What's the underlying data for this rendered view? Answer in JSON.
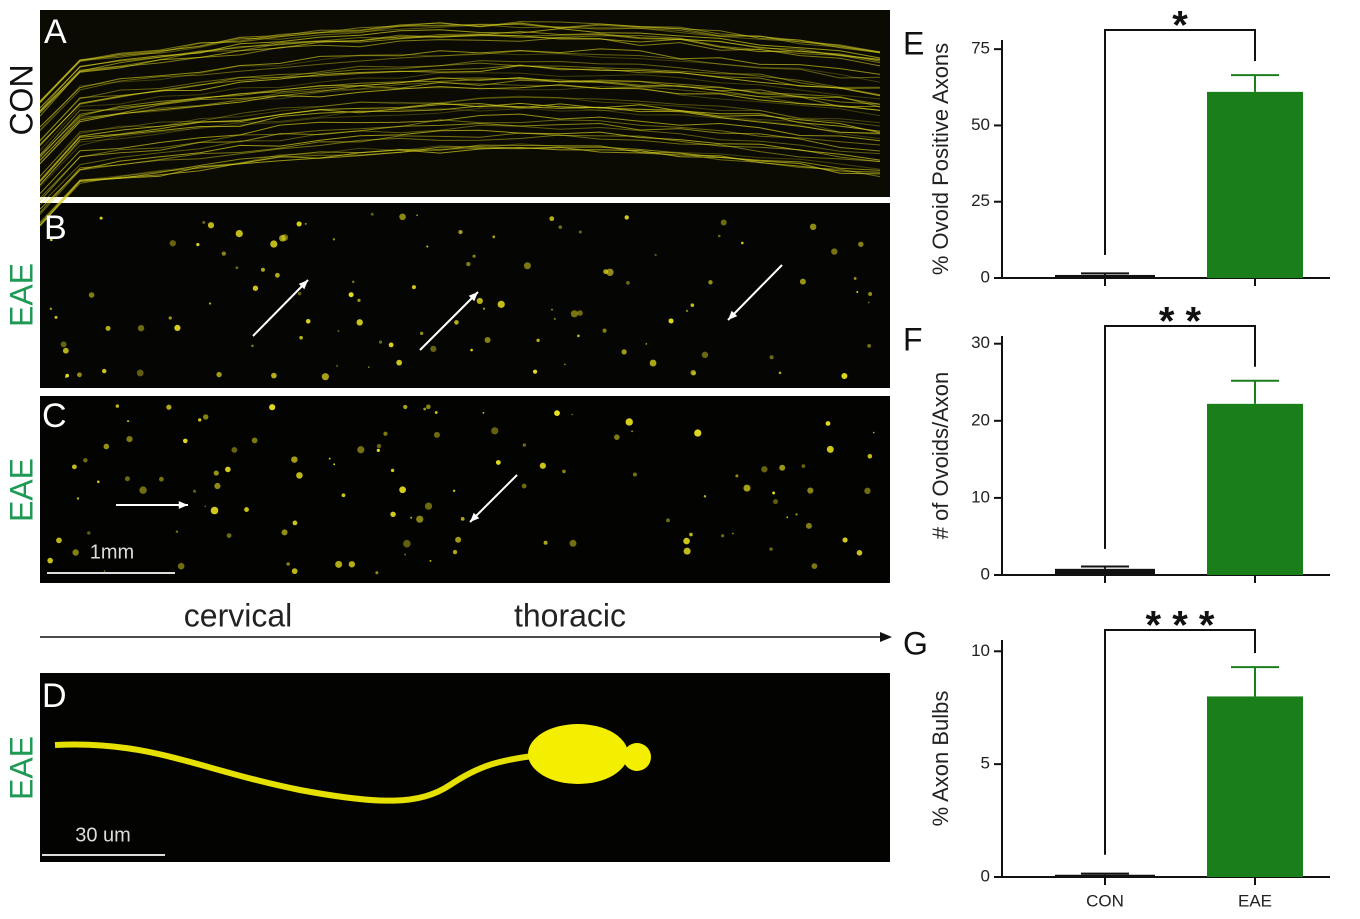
{
  "panels": {
    "letters": [
      "A",
      "B",
      "C",
      "D"
    ],
    "rows": [
      {
        "label": "CON",
        "color": "#111111"
      },
      {
        "label": "EAE",
        "color": "#1f9a55"
      },
      {
        "label": "EAE",
        "color": "#1f9a55"
      },
      {
        "label": "EAE",
        "color": "#1f9a55"
      }
    ],
    "axis_labels": [
      "cervical",
      "thoracic"
    ],
    "scale_bars": [
      "1mm",
      "30 um"
    ]
  },
  "chart_data": [
    {
      "type": "bar",
      "panel": "E",
      "ylabel": "% Ovoid Positive Axons",
      "categories": [
        null,
        null
      ],
      "values": [
        1,
        61
      ],
      "errors": [
        0.5,
        5.5
      ],
      "colors": [
        "#111111",
        "#1a7f1a"
      ],
      "ylim": [
        0,
        78
      ],
      "yticks": [
        0,
        25,
        50,
        75
      ],
      "significance": "*"
    },
    {
      "type": "bar",
      "panel": "F",
      "ylabel": "# of Ovoids/Axon",
      "categories": [
        null,
        null
      ],
      "values": [
        0.8,
        22.2
      ],
      "errors": [
        0.3,
        3
      ],
      "colors": [
        "#111111",
        "#1a7f1a"
      ],
      "ylim": [
        0,
        31
      ],
      "yticks": [
        0,
        10,
        20,
        30
      ],
      "significance": "* *"
    },
    {
      "type": "bar",
      "panel": "G",
      "ylabel": "% Axon Bulbs",
      "categories": [
        "CON",
        "EAE"
      ],
      "values": [
        0.1,
        8
      ],
      "errors": [
        0.05,
        1.3
      ],
      "colors": [
        "#111111",
        "#1a7f1a"
      ],
      "ylim": [
        0,
        10.5
      ],
      "yticks": [
        0,
        5,
        10
      ],
      "significance": "* * *"
    }
  ]
}
